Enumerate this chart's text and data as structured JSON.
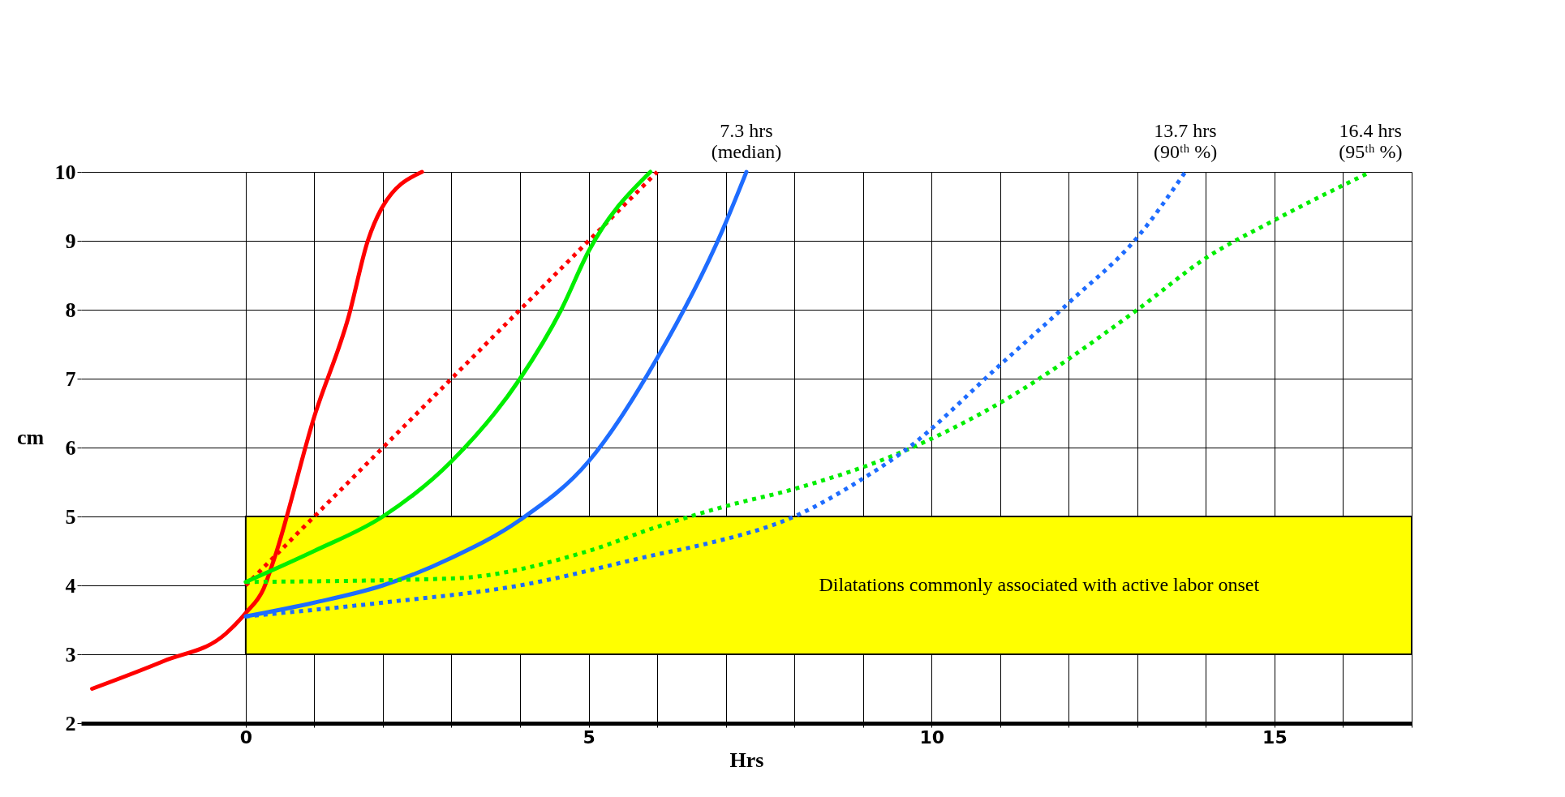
{
  "chart_data": {
    "type": "line",
    "xlabel": "Hrs",
    "ylabel": "cm",
    "xlim": [
      -2.4,
      17
    ],
    "ylim": [
      2,
      10
    ],
    "xticks": [
      0,
      {
        "value": 1,
        "label": null
      },
      {
        "value": 2,
        "label": null
      },
      {
        "value": 3,
        "label": null
      },
      {
        "value": 4,
        "label": null
      },
      5,
      {
        "value": 6,
        "label": null
      },
      {
        "value": 7,
        "label": null
      },
      {
        "value": 8,
        "label": null
      },
      {
        "value": 9,
        "label": null
      },
      10,
      {
        "value": 11,
        "label": null
      },
      {
        "value": 12,
        "label": null
      },
      {
        "value": 13,
        "label": null
      },
      {
        "value": 14,
        "label": null
      },
      15,
      {
        "value": 16,
        "label": null
      },
      {
        "value": 17,
        "label": null
      }
    ],
    "yticks": [
      2,
      3,
      4,
      5,
      6,
      7,
      8,
      9,
      10
    ],
    "grid": true,
    "series": [
      {
        "color": "#ff0000",
        "line_style": "solid",
        "x": [
          -2.24,
          -1.2,
          -0.29,
          0,
          0.26,
          0.42,
          1.0,
          1.5,
          1.78,
          1.97,
          2.57
        ],
        "values": [
          2.5,
          2.9,
          3.3,
          3.6,
          3.95,
          4.4,
          6.45,
          7.9,
          9.0,
          9.45,
          10
        ]
      },
      {
        "color": "#ff0000",
        "line_style": "dotted",
        "x": [
          0,
          3,
          6
        ],
        "values": [
          4,
          7,
          10
        ]
      },
      {
        "color": "#00ee00",
        "line_style": "solid",
        "x": [
          0,
          1,
          2,
          3,
          4,
          4.6,
          5,
          5.9
        ],
        "values": [
          4.05,
          4.5,
          5.0,
          5.8,
          7.0,
          8.0,
          8.85,
          10
        ]
      },
      {
        "color": "#1e6cff",
        "line_style": "solid",
        "x": [
          0,
          1,
          2,
          3,
          4,
          5,
          6,
          6.95,
          7.3
        ],
        "values": [
          3.55,
          3.75,
          4.0,
          4.4,
          4.95,
          5.8,
          7.3,
          9.15,
          10
        ]
      },
      {
        "color": "#00ee00",
        "line_style": "dotted",
        "x": [
          0,
          3,
          5,
          6,
          7,
          8,
          9.6,
          11,
          13,
          14,
          15,
          16.4
        ],
        "values": [
          4.05,
          4.1,
          4.5,
          4.85,
          5.15,
          5.4,
          5.95,
          6.65,
          8.0,
          8.75,
          9.3,
          10
        ]
      },
      {
        "color": "#1e6cff",
        "line_style": "dotted",
        "x": [
          0,
          2,
          4,
          6,
          6.7,
          8,
          9,
          9.6,
          11,
          12,
          13,
          13.7
        ],
        "values": [
          3.55,
          3.75,
          4.0,
          4.45,
          4.6,
          5.0,
          5.55,
          5.95,
          7.2,
          8.1,
          9.05,
          10
        ]
      }
    ],
    "bands": [
      {
        "axis": "y",
        "from": 3,
        "to": 5,
        "color": "#ffff00",
        "label": "Dilatations commonly associated with active labor onset"
      }
    ],
    "annotations": [
      {
        "text": "7.3 hrs (median)",
        "x": 7.3,
        "y": 10
      },
      {
        "text": "13.7 hrs (90ᵗʰ %)",
        "x": 13.7,
        "y": 10
      },
      {
        "text": "16.4 hrs (95ᵗʰ %)",
        "x": 16.4,
        "y": 10
      }
    ]
  }
}
